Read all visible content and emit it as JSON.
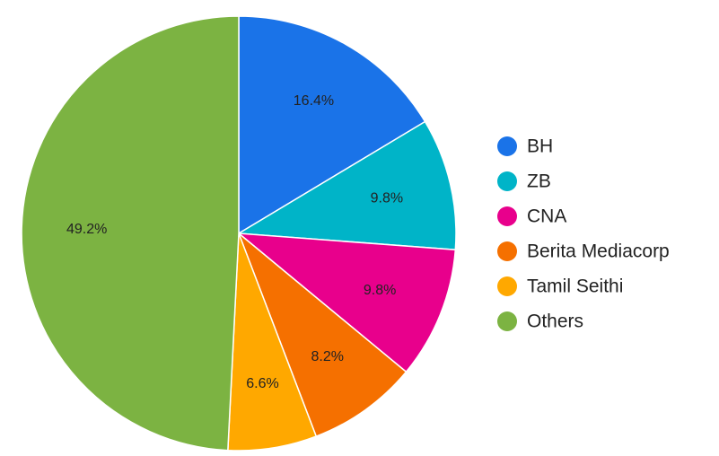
{
  "chart_data": {
    "type": "pie",
    "title": "",
    "legend_position": "right",
    "start": "top, clockwise",
    "slices": [
      {
        "label": "BH",
        "value": 16.4,
        "display": "16.4%",
        "color": "#1a73e8"
      },
      {
        "label": "ZB",
        "value": 9.8,
        "display": "9.8%",
        "color": "#00b4c8"
      },
      {
        "label": "CNA",
        "value": 9.8,
        "display": "9.8%",
        "color": "#e8008c"
      },
      {
        "label": "Berita Mediacorp",
        "value": 8.2,
        "display": "8.2%",
        "color": "#f57000"
      },
      {
        "label": "Tamil Seithi",
        "value": 6.6,
        "display": "6.6%",
        "color": "#ffa800"
      },
      {
        "label": "Others",
        "value": 49.2,
        "display": "49.2%",
        "color": "#7cb342"
      }
    ]
  }
}
